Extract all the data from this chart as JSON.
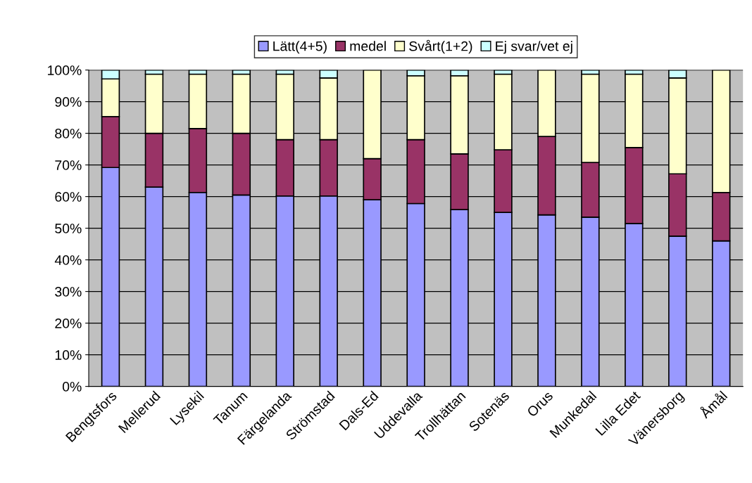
{
  "chart_data": {
    "type": "bar",
    "stacked": true,
    "categories": [
      "Bengtsfors",
      "Mellerud",
      "Lysekil",
      "Tanum",
      "Färgelanda",
      "Strömstad",
      "Dals-Ed",
      "Uddevalla",
      "Trollhättan",
      "Sotenäs",
      "Orus",
      "Munkedal",
      "Lilla Edet",
      "Vänersborg",
      "Åmål"
    ],
    "series": [
      {
        "name": "Lätt(4+5)",
        "color": "#9999ff",
        "values": [
          69.2,
          63.0,
          61.3,
          60.5,
          60.2,
          60.2,
          59.0,
          57.8,
          55.9,
          55.0,
          54.2,
          53.5,
          51.5,
          47.5,
          46.0
        ]
      },
      {
        "name": "medel",
        "color": "#993366",
        "values": [
          16.1,
          17.0,
          20.2,
          19.5,
          17.8,
          17.8,
          13.0,
          20.2,
          17.6,
          19.8,
          24.8,
          17.3,
          24.0,
          19.7,
          15.3
        ]
      },
      {
        "name": "Svårt(1+2)",
        "color": "#ffffcc",
        "values": [
          11.9,
          18.7,
          17.2,
          18.7,
          20.7,
          19.5,
          28.0,
          20.2,
          24.7,
          23.9,
          21.0,
          27.9,
          23.2,
          30.3,
          38.7
        ]
      },
      {
        "name": "Ej svar/vet ej",
        "color": "#ccffff",
        "values": [
          2.8,
          1.3,
          1.3,
          1.3,
          1.3,
          2.5,
          null,
          1.8,
          1.8,
          1.3,
          null,
          1.3,
          1.3,
          2.5,
          null
        ]
      }
    ],
    "ylim": [
      0,
      100
    ],
    "yticks": [
      {
        "value": 0,
        "label": "0%"
      },
      {
        "value": 10,
        "label": "10%"
      },
      {
        "value": 20,
        "label": "20%"
      },
      {
        "value": 30,
        "label": "30%"
      },
      {
        "value": 40,
        "label": "40%"
      },
      {
        "value": 50,
        "label": "50%"
      },
      {
        "value": 60,
        "label": "60%"
      },
      {
        "value": 70,
        "label": "70%"
      },
      {
        "value": 80,
        "label": "80%"
      },
      {
        "value": 90,
        "label": "90%"
      },
      {
        "value": 100,
        "label": "100%"
      }
    ],
    "grid": "y",
    "legend": "top"
  }
}
